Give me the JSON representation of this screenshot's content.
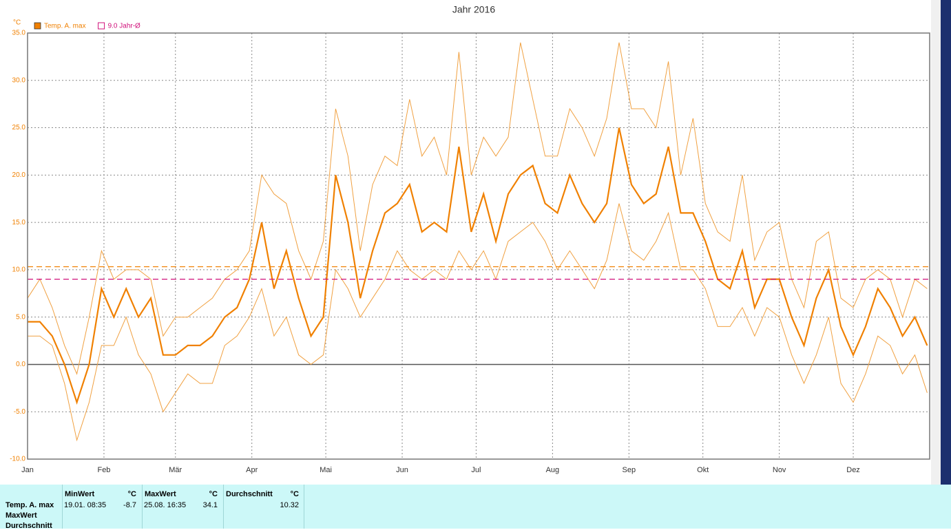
{
  "chart_data": {
    "type": "line",
    "title": "Jahr 2016",
    "y_unit": "°C",
    "xlim": [
      0,
      366
    ],
    "xticks": [
      {
        "value": 0,
        "label": "Jan"
      },
      {
        "value": 31,
        "label": "Feb"
      },
      {
        "value": 60,
        "label": "Mär"
      },
      {
        "value": 91,
        "label": "Apr"
      },
      {
        "value": 121,
        "label": "Mai"
      },
      {
        "value": 152,
        "label": "Jun"
      },
      {
        "value": 182,
        "label": "Jul"
      },
      {
        "value": 213,
        "label": "Aug"
      },
      {
        "value": 244,
        "label": "Sep"
      },
      {
        "value": 274,
        "label": "Okt"
      },
      {
        "value": 305,
        "label": "Nov"
      },
      {
        "value": 335,
        "label": "Dez"
      }
    ],
    "ylim": [
      -10,
      35
    ],
    "yticks": [
      {
        "value": 35,
        "label": "35.0"
      },
      {
        "value": 30,
        "label": "30.0"
      },
      {
        "value": 25,
        "label": "25.0"
      },
      {
        "value": 20,
        "label": "20.0"
      },
      {
        "value": 15,
        "label": "15.0"
      },
      {
        "value": 10,
        "label": "10.0"
      },
      {
        "value": 5,
        "label": "5.0"
      },
      {
        "value": 0,
        "label": "0.0"
      },
      {
        "value": -5,
        "label": "-5.0"
      },
      {
        "value": -10,
        "label": "-10.0"
      }
    ],
    "grid": true,
    "x": [
      0,
      5,
      10,
      15,
      20,
      25,
      30,
      35,
      40,
      45,
      50,
      55,
      60,
      65,
      70,
      75,
      80,
      85,
      90,
      95,
      100,
      105,
      110,
      115,
      120,
      125,
      130,
      135,
      140,
      145,
      150,
      155,
      160,
      165,
      170,
      175,
      180,
      185,
      190,
      195,
      200,
      205,
      210,
      215,
      220,
      225,
      230,
      235,
      240,
      245,
      250,
      255,
      260,
      265,
      270,
      275,
      280,
      285,
      290,
      295,
      300,
      305,
      310,
      315,
      320,
      325,
      330,
      335,
      340,
      345,
      350,
      355,
      360,
      365
    ],
    "series": [
      {
        "name": "Temp. A. max",
        "color": "#f08000",
        "values": [
          4.5,
          4.5,
          3,
          0,
          -4,
          0,
          8,
          5,
          8,
          5,
          7,
          1,
          1,
          2,
          2,
          3,
          5,
          6,
          9,
          15,
          8,
          12,
          7,
          3,
          5,
          20,
          15,
          7,
          12,
          16,
          17,
          19,
          14,
          15,
          14,
          23,
          14,
          18,
          13,
          18,
          20,
          21,
          17,
          16,
          20,
          17,
          15,
          17,
          25,
          19,
          17,
          18,
          23,
          16,
          16,
          13,
          9,
          8,
          12,
          6,
          9,
          9,
          5,
          2,
          7,
          10,
          4,
          1,
          4,
          8,
          6,
          3,
          5,
          2
        ]
      }
    ],
    "band": {
      "color": "#f0a040",
      "upper": [
        7,
        9,
        6,
        2,
        -1,
        5,
        12,
        9,
        10,
        10,
        9,
        3,
        5,
        5,
        6,
        7,
        9,
        10,
        12,
        20,
        18,
        17,
        12,
        9,
        13,
        27,
        22,
        12,
        19,
        22,
        21,
        28,
        22,
        24,
        20,
        33,
        20,
        24,
        22,
        24,
        34,
        28,
        22,
        22,
        27,
        25,
        22,
        26,
        34,
        27,
        27,
        25,
        32,
        20,
        26,
        17,
        14,
        13,
        20,
        11,
        14,
        15,
        9,
        6,
        13,
        14,
        7,
        6,
        9,
        10,
        9,
        5,
        9,
        8
      ],
      "lower": [
        3,
        3,
        2,
        -2,
        -8,
        -4,
        2,
        2,
        5,
        1,
        -1,
        -5,
        -3,
        -1,
        -2,
        -2,
        2,
        3,
        5,
        8,
        3,
        5,
        1,
        0,
        1,
        10,
        8,
        5,
        7,
        9,
        12,
        10,
        9,
        10,
        9,
        12,
        10,
        12,
        9,
        13,
        14,
        15,
        13,
        10,
        12,
        10,
        8,
        11,
        17,
        12,
        11,
        13,
        16,
        10,
        10,
        8,
        4,
        4,
        6,
        3,
        6,
        5,
        1,
        -2,
        1,
        5,
        -2,
        -4,
        -1,
        3,
        2,
        -1,
        1,
        -3
      ]
    },
    "reference": {
      "label": "9.0 Jahr-Ø",
      "value": 9.0,
      "color": "#d0107a"
    },
    "mean_color": "#f08000"
  },
  "table": {
    "row_labels": [
      "Temp. A. max",
      "MaxWert",
      "Durchschnitt"
    ],
    "columns": [
      {
        "header": "MinWert",
        "unit": "°C",
        "time": "19.01. 08:35",
        "value": -8.7
      },
      {
        "header": "MaxWert",
        "unit": "°C",
        "time": "25.08. 16:35",
        "value": 34.1
      },
      {
        "header": "Durchschnitt",
        "unit": "°C",
        "value": 10.32
      }
    ]
  }
}
